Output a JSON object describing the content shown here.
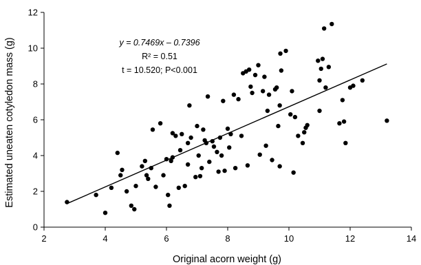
{
  "chart_data": {
    "type": "scatter",
    "xlabel": "Original acorn weight (g)",
    "ylabel": "Estimated uneaten cotyledon mass (g)",
    "xlim": [
      2,
      14
    ],
    "ylim": [
      0,
      12
    ],
    "xticks": [
      2,
      4,
      6,
      8,
      10,
      12,
      14
    ],
    "yticks": [
      0,
      2,
      4,
      6,
      8,
      10,
      12
    ],
    "grid": false,
    "annotations": {
      "equation": "y = 0.7469x – 0.7396",
      "r2": "R² = 0.51",
      "stat": "t = 10.520; P<0.001"
    },
    "fit": {
      "slope": 0.7469,
      "intercept": -0.7396,
      "x_range": [
        2.75,
        13.2
      ]
    },
    "points": [
      [
        2.75,
        1.4
      ],
      [
        3.7,
        1.8
      ],
      [
        4.0,
        0.8
      ],
      [
        4.2,
        2.2
      ],
      [
        4.4,
        4.15
      ],
      [
        4.5,
        2.9
      ],
      [
        4.55,
        3.2
      ],
      [
        4.7,
        2.0
      ],
      [
        4.85,
        1.2
      ],
      [
        4.95,
        1.0
      ],
      [
        5.0,
        2.3
      ],
      [
        5.2,
        3.4
      ],
      [
        5.3,
        3.7
      ],
      [
        5.35,
        2.9
      ],
      [
        5.4,
        2.7
      ],
      [
        5.5,
        3.3
      ],
      [
        5.55,
        5.45
      ],
      [
        5.65,
        2.25
      ],
      [
        5.8,
        5.8
      ],
      [
        5.9,
        2.9
      ],
      [
        6.0,
        3.8
      ],
      [
        6.05,
        1.8
      ],
      [
        6.1,
        1.2
      ],
      [
        6.15,
        3.7
      ],
      [
        6.2,
        3.9
      ],
      [
        6.2,
        5.25
      ],
      [
        6.3,
        5.1
      ],
      [
        6.4,
        2.2
      ],
      [
        6.45,
        4.3
      ],
      [
        6.5,
        5.2
      ],
      [
        6.6,
        2.3
      ],
      [
        6.7,
        4.7
      ],
      [
        6.7,
        3.5
      ],
      [
        6.75,
        6.8
      ],
      [
        6.8,
        5.0
      ],
      [
        6.95,
        2.8
      ],
      [
        7.0,
        5.65
      ],
      [
        7.05,
        4.0
      ],
      [
        7.1,
        2.85
      ],
      [
        7.15,
        3.3
      ],
      [
        7.2,
        5.45
      ],
      [
        7.25,
        4.85
      ],
      [
        7.3,
        4.7
      ],
      [
        7.35,
        7.3
      ],
      [
        7.4,
        3.65
      ],
      [
        7.5,
        4.8
      ],
      [
        7.55,
        4.5
      ],
      [
        7.65,
        4.2
      ],
      [
        7.7,
        3.1
      ],
      [
        7.75,
        5.0
      ],
      [
        7.8,
        4.0
      ],
      [
        7.85,
        7.05
      ],
      [
        7.9,
        3.15
      ],
      [
        8.0,
        5.5
      ],
      [
        8.05,
        4.45
      ],
      [
        8.1,
        5.2
      ],
      [
        8.2,
        7.4
      ],
      [
        8.25,
        3.3
      ],
      [
        8.35,
        7.15
      ],
      [
        8.45,
        5.1
      ],
      [
        8.5,
        8.6
      ],
      [
        8.6,
        8.7
      ],
      [
        8.65,
        3.45
      ],
      [
        8.7,
        8.8
      ],
      [
        8.75,
        7.85
      ],
      [
        8.8,
        7.5
      ],
      [
        8.9,
        8.5
      ],
      [
        9.0,
        9.05
      ],
      [
        9.05,
        4.05
      ],
      [
        9.15,
        7.6
      ],
      [
        9.2,
        8.4
      ],
      [
        9.25,
        4.55
      ],
      [
        9.3,
        6.5
      ],
      [
        9.35,
        7.4
      ],
      [
        9.45,
        3.75
      ],
      [
        9.55,
        7.7
      ],
      [
        9.6,
        7.8
      ],
      [
        9.65,
        5.65
      ],
      [
        9.7,
        6.8
      ],
      [
        9.72,
        9.7
      ],
      [
        9.75,
        8.75
      ],
      [
        9.7,
        3.4
      ],
      [
        9.9,
        9.85
      ],
      [
        10.05,
        6.3
      ],
      [
        10.1,
        7.6
      ],
      [
        10.15,
        3.05
      ],
      [
        10.2,
        6.15
      ],
      [
        10.3,
        5.1
      ],
      [
        10.45,
        4.7
      ],
      [
        10.5,
        5.3
      ],
      [
        10.6,
        5.7
      ],
      [
        10.55,
        5.55
      ],
      [
        10.95,
        9.3
      ],
      [
        11.0,
        6.5
      ],
      [
        11.0,
        8.2
      ],
      [
        11.05,
        8.85
      ],
      [
        11.1,
        9.4
      ],
      [
        11.15,
        11.1
      ],
      [
        11.2,
        7.8
      ],
      [
        11.3,
        8.95
      ],
      [
        11.4,
        11.35
      ],
      [
        11.65,
        5.8
      ],
      [
        11.75,
        7.1
      ],
      [
        11.8,
        5.9
      ],
      [
        11.85,
        4.7
      ],
      [
        12.0,
        7.8
      ],
      [
        12.1,
        7.9
      ],
      [
        12.4,
        8.2
      ],
      [
        13.2,
        5.95
      ]
    ]
  }
}
